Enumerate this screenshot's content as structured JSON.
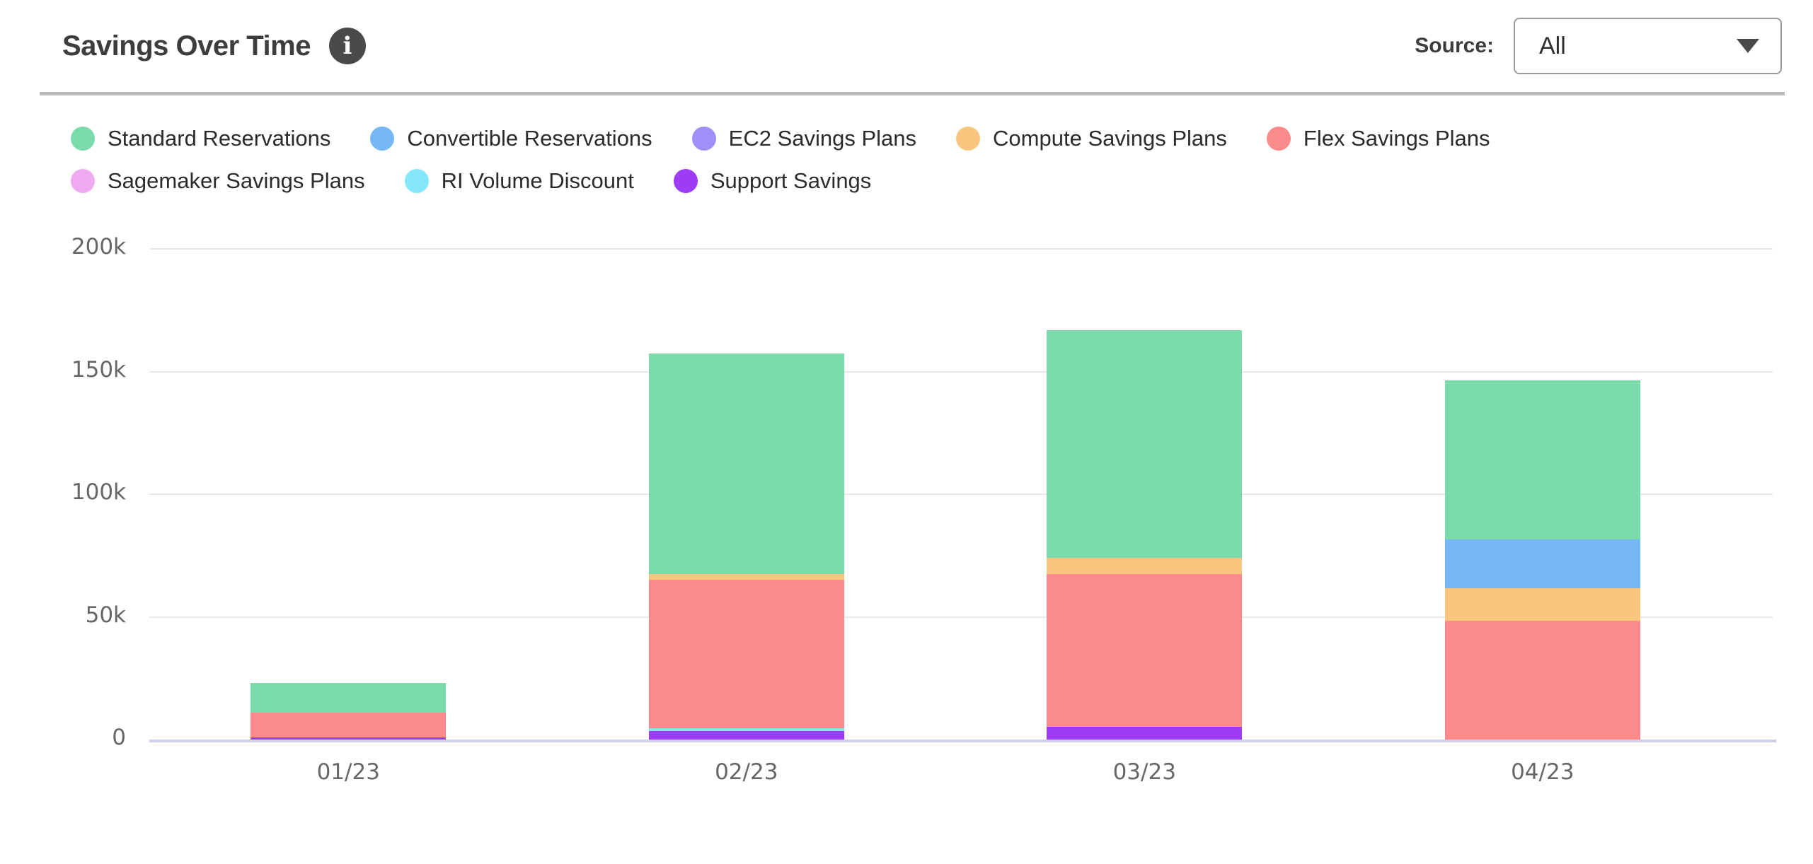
{
  "header": {
    "title": "Savings Over Time",
    "info_icon_glyph": "i",
    "source_label": "Source:",
    "source_value": "All"
  },
  "chart_data": {
    "type": "bar",
    "stacked": true,
    "title": "Savings Over Time",
    "categories": [
      "01/23",
      "02/23",
      "03/23",
      "04/23"
    ],
    "series": [
      {
        "name": "Standard Reservations",
        "color": "#7cdbaa",
        "values": [
          12100,
          90000,
          92800,
          65000
        ]
      },
      {
        "name": "Convertible Reservations",
        "color": "#76b7f8",
        "values": [
          0,
          0,
          0,
          19700
        ]
      },
      {
        "name": "EC2 Savings Plans",
        "color": "#9f8ff8",
        "values": [
          0,
          0,
          0,
          0
        ]
      },
      {
        "name": "Compute Savings Plans",
        "color": "#f9c67e",
        "values": [
          0,
          2400,
          6600,
          13500
        ]
      },
      {
        "name": "Flex Savings Plans",
        "color": "#fb8a8a",
        "values": [
          10100,
          60500,
          62200,
          48300
        ]
      },
      {
        "name": "Sagemaker Savings Plans",
        "color": "#efa9ef",
        "values": [
          0,
          0,
          0,
          0
        ]
      },
      {
        "name": "RI Volume Discount",
        "color": "#85e7fa",
        "values": [
          0,
          1000,
          0,
          0
        ]
      },
      {
        "name": "Support Savings",
        "color": "#9d3bf5",
        "values": [
          900,
          3500,
          5200,
          0
        ]
      }
    ],
    "stack_order": "reverse of series list (Support Savings at bottom, Standard Reservations on top)",
    "xlabel": "",
    "ylabel": "",
    "ylim": [
      0,
      200000
    ],
    "yticks": [
      {
        "value": 0,
        "label": "0"
      },
      {
        "value": 50000,
        "label": "50k"
      },
      {
        "value": 100000,
        "label": "100k"
      },
      {
        "value": 150000,
        "label": "150k"
      },
      {
        "value": 200000,
        "label": "200k"
      }
    ],
    "grid": "horizontal",
    "legend_position": "top-left"
  },
  "colors": {
    "title_text": "#3d3d3d",
    "legend_text": "#2b2b2b",
    "axis_text": "#666666",
    "gridline": "#e8e8e8",
    "baseline": "#ccd3ea",
    "divider": "#b9b9b9",
    "info_icon_bg": "#4a4a4a",
    "dropdown_border": "#9a9a9a"
  }
}
